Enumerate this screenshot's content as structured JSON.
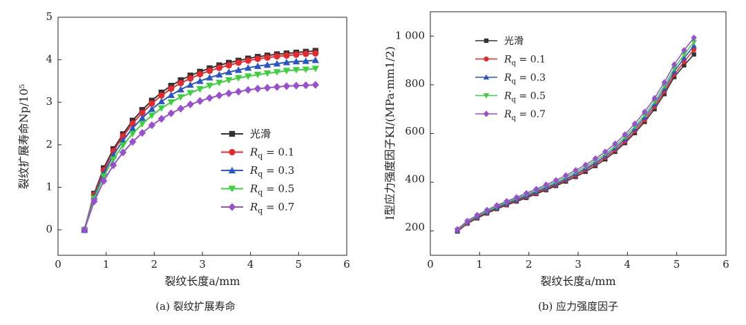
{
  "chart_data": [
    {
      "type": "line",
      "caption": "(a) 裂纹扩展寿命",
      "xlabel": "裂纹长度a/mm",
      "ylabel": "裂纹扩展寿命Np/10⁵",
      "xlim": [
        0,
        6
      ],
      "ylim": [
        -0.6,
        5
      ],
      "xticks": [
        "0",
        "1",
        "2",
        "3",
        "4",
        "5",
        "6"
      ],
      "yticks": [
        "0",
        "1",
        "2",
        "3",
        "4",
        "5"
      ],
      "legend_placement": "center-right",
      "x": [
        0.55,
        0.75,
        0.95,
        1.15,
        1.35,
        1.55,
        1.75,
        1.95,
        2.15,
        2.35,
        2.55,
        2.75,
        2.95,
        3.15,
        3.35,
        3.55,
        3.75,
        3.95,
        4.15,
        4.35,
        4.55,
        4.75,
        4.95,
        5.15,
        5.35
      ],
      "series": [
        {
          "name": "光滑",
          "prefix": "",
          "sub": "",
          "suffix": "",
          "color": "#333333",
          "marker": "square",
          "values": [
            0.0,
            0.85,
            1.45,
            1.9,
            2.25,
            2.57,
            2.82,
            3.04,
            3.23,
            3.39,
            3.52,
            3.63,
            3.72,
            3.8,
            3.87,
            3.93,
            3.98,
            4.03,
            4.07,
            4.1,
            4.13,
            4.15,
            4.17,
            4.19,
            4.21
          ]
        },
        {
          "name": "Rq = 0.1",
          "prefix": "R",
          "sub": "q",
          "suffix": " = 0.1",
          "color": "#e8282b",
          "marker": "circle",
          "values": [
            0.0,
            0.82,
            1.4,
            1.85,
            2.2,
            2.5,
            2.75,
            2.97,
            3.16,
            3.32,
            3.45,
            3.56,
            3.66,
            3.74,
            3.81,
            3.87,
            3.93,
            3.98,
            4.02,
            4.05,
            4.08,
            4.1,
            4.12,
            4.14,
            4.15
          ]
        },
        {
          "name": "Rq = 0.3",
          "prefix": "R",
          "sub": "q",
          "suffix": " = 0.3",
          "color": "#2a55c8",
          "marker": "triangle",
          "values": [
            0.0,
            0.78,
            1.33,
            1.76,
            2.1,
            2.39,
            2.63,
            2.84,
            3.02,
            3.17,
            3.3,
            3.41,
            3.5,
            3.58,
            3.65,
            3.71,
            3.76,
            3.81,
            3.85,
            3.88,
            3.91,
            3.94,
            3.96,
            3.97,
            3.99
          ]
        },
        {
          "name": "Rq = 0.5",
          "prefix": "R",
          "sub": "q",
          "suffix": " = 0.5",
          "color": "#3ad13a",
          "marker": "triangle-down",
          "values": [
            0.0,
            0.74,
            1.26,
            1.66,
            1.99,
            2.26,
            2.49,
            2.69,
            2.86,
            3.0,
            3.12,
            3.22,
            3.31,
            3.39,
            3.46,
            3.52,
            3.57,
            3.61,
            3.65,
            3.68,
            3.71,
            3.74,
            3.76,
            3.77,
            3.79
          ]
        },
        {
          "name": "Rq = 0.7",
          "prefix": "R",
          "sub": "q",
          "suffix": " = 0.7",
          "color": "#9a4fd0",
          "marker": "diamond",
          "values": [
            0.0,
            0.67,
            1.15,
            1.52,
            1.82,
            2.07,
            2.28,
            2.46,
            2.61,
            2.74,
            2.85,
            2.95,
            3.03,
            3.1,
            3.16,
            3.21,
            3.25,
            3.29,
            3.32,
            3.34,
            3.36,
            3.38,
            3.39,
            3.4,
            3.41
          ]
        }
      ]
    },
    {
      "type": "line",
      "caption": "(b) 应力强度因子",
      "xlabel": "裂纹长度a/mm",
      "ylabel": "I型应力强度因子KI/(MPa·mm1/2)",
      "xlim": [
        0,
        6
      ],
      "ylim": [
        100,
        1100
      ],
      "xticks": [
        "0",
        "1",
        "2",
        "3",
        "4",
        "5",
        "6"
      ],
      "yticks": [
        "200",
        "400",
        "600",
        "800",
        "1 000"
      ],
      "ytick_values": [
        200,
        400,
        600,
        800,
        1000
      ],
      "legend_placement": "top-left",
      "x": [
        0.55,
        0.75,
        0.95,
        1.15,
        1.35,
        1.55,
        1.75,
        1.95,
        2.15,
        2.35,
        2.55,
        2.75,
        2.95,
        3.15,
        3.35,
        3.55,
        3.75,
        3.95,
        4.15,
        4.35,
        4.55,
        4.75,
        4.95,
        5.15,
        5.35
      ],
      "series": [
        {
          "name": "光滑",
          "prefix": "",
          "sub": "",
          "suffix": "",
          "color": "#333333",
          "marker": "square",
          "values": [
            198,
            230,
            252,
            272,
            290,
            306,
            321,
            336,
            352,
            368,
            385,
            403,
            422,
            443,
            467,
            494,
            525,
            561,
            602,
            648,
            700,
            762,
            832,
            880,
            925
          ]
        },
        {
          "name": "Rq = 0.1",
          "prefix": "R",
          "sub": "q",
          "suffix": " = 0.1",
          "color": "#e8282b",
          "marker": "circle",
          "values": [
            200,
            232,
            255,
            275,
            293,
            309,
            324,
            340,
            356,
            373,
            390,
            409,
            428,
            450,
            474,
            501,
            532,
            568,
            610,
            656,
            710,
            772,
            842,
            895,
            945
          ]
        },
        {
          "name": "Rq = 0.3",
          "prefix": "R",
          "sub": "q",
          "suffix": " = 0.3",
          "color": "#2a55c8",
          "marker": "triangle",
          "values": [
            202,
            235,
            258,
            278,
            296,
            313,
            328,
            344,
            361,
            378,
            395,
            414,
            434,
            456,
            480,
            508,
            540,
            576,
            619,
            666,
            720,
            783,
            854,
            910,
            960
          ]
        },
        {
          "name": "Rq = 0.5",
          "prefix": "R",
          "sub": "q",
          "suffix": " = 0.5",
          "color": "#3ad13a",
          "marker": "triangle-down",
          "values": [
            204,
            237,
            261,
            281,
            300,
            317,
            333,
            349,
            366,
            384,
            401,
            421,
            441,
            463,
            488,
            516,
            548,
            585,
            628,
            676,
            731,
            795,
            867,
            925,
            975
          ]
        },
        {
          "name": "Rq = 0.7",
          "prefix": "R",
          "sub": "q",
          "suffix": " = 0.7",
          "color": "#9a4fd0",
          "marker": "diamond",
          "values": [
            207,
            241,
            265,
            286,
            305,
            322,
            338,
            355,
            372,
            390,
            408,
            428,
            449,
            471,
            497,
            525,
            558,
            596,
            640,
            689,
            745,
            810,
            883,
            942,
            993
          ]
        }
      ]
    }
  ]
}
